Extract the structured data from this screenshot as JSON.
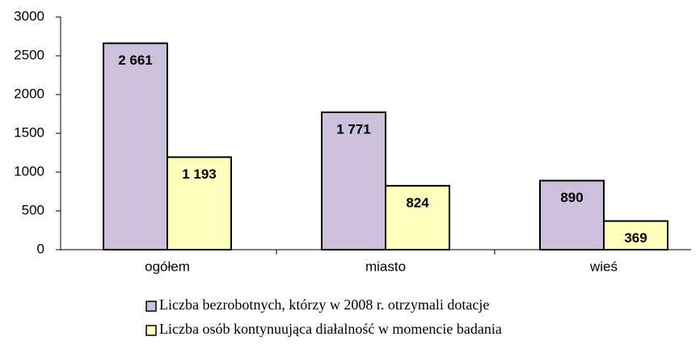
{
  "chart_data": {
    "type": "bar",
    "categories": [
      "ogółem",
      "miasto",
      "wieś"
    ],
    "series": [
      {
        "name": "Liczba bezrobotnych, którzy w 2008 r. otrzymali dotacje",
        "color": "#ccc0da",
        "values": [
          2661,
          1771,
          890
        ],
        "value_labels": [
          "2 661",
          "1 771",
          "890"
        ]
      },
      {
        "name": "Liczba osób kontynuująca diałalność w momencie badania",
        "color": "#ffffc0",
        "values": [
          1193,
          824,
          369
        ],
        "value_labels": [
          "1 193",
          "824",
          "369"
        ]
      }
    ],
    "ylim": [
      0,
      3000
    ],
    "yticks": [
      0,
      500,
      1000,
      1500,
      2000,
      2500,
      3000
    ],
    "grid": false
  }
}
